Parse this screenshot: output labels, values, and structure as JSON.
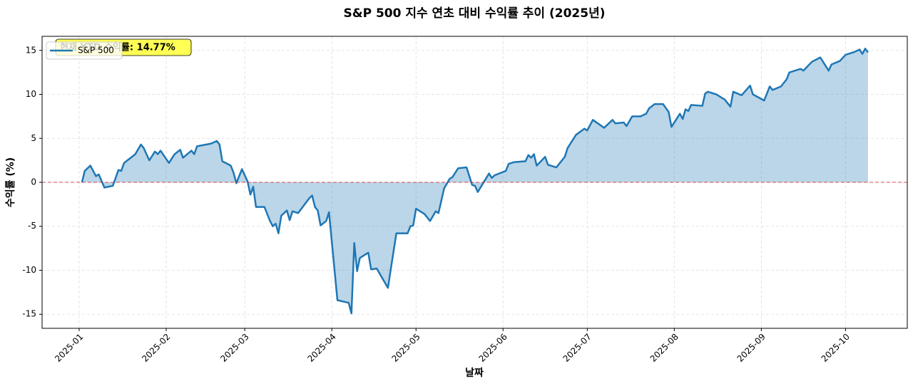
{
  "chart_data": {
    "type": "line",
    "title": "S&P 500 지수 연초 대비 수익률 추이 (2025년)",
    "xlabel": "날짜",
    "ylabel": "수익률 (%)",
    "annotation": "현재 YTD 수익률: 14.77%",
    "legend": "upper left",
    "grid": true,
    "fill": true,
    "hline": 0,
    "xlim": [
      -13.2,
      295
    ],
    "ylim": [
      -16.6,
      16.6
    ],
    "xticks": [
      {
        "value": 0,
        "label": "2025-01"
      },
      {
        "value": 31,
        "label": "2025-02"
      },
      {
        "value": 59,
        "label": "2025-03"
      },
      {
        "value": 90,
        "label": "2025-04"
      },
      {
        "value": 120,
        "label": "2025-05"
      },
      {
        "value": 151,
        "label": "2025-06"
      },
      {
        "value": 181,
        "label": "2025-07"
      },
      {
        "value": 212,
        "label": "2025-08"
      },
      {
        "value": 243,
        "label": "2025-09"
      },
      {
        "value": 273,
        "label": "2025-10"
      }
    ],
    "yticks": [
      -15,
      -10,
      -5,
      0,
      5,
      10,
      15
    ],
    "series": [
      {
        "name": "S&P 500",
        "color": "#1f77b4",
        "x": [
          1,
          2,
          4,
          6,
          7,
          9,
          12,
          14,
          15,
          16,
          20,
          22,
          23,
          25,
          27,
          28,
          29,
          32,
          34,
          36,
          37,
          40,
          41,
          42,
          47,
          49,
          50,
          51,
          54,
          55,
          56,
          58,
          60,
          61,
          62,
          63,
          66,
          68,
          69,
          70,
          71,
          72,
          74,
          75,
          76,
          78,
          82,
          83,
          84,
          85,
          86,
          88,
          89,
          92,
          96,
          97,
          98,
          99,
          100,
          103,
          104,
          106,
          110,
          111,
          113,
          117,
          118,
          119,
          120,
          123,
          125,
          127,
          128,
          130,
          132,
          133,
          135,
          138,
          140,
          141,
          142,
          146,
          147,
          148,
          152,
          153,
          155,
          159,
          160,
          161,
          162,
          163,
          166,
          167,
          170,
          173,
          174,
          177,
          180,
          181,
          183,
          187,
          190,
          191,
          194,
          195,
          197,
          200,
          202,
          203,
          205,
          208,
          210,
          211,
          214,
          215,
          216,
          217,
          218,
          222,
          223,
          224,
          227,
          230,
          232,
          233,
          236,
          239,
          240,
          244,
          246,
          247,
          250,
          252,
          253,
          257,
          258,
          261,
          264,
          267,
          268,
          271,
          273,
          276,
          278,
          279,
          280,
          281
        ],
        "values": [
          0,
          1.3,
          1.9,
          0.7,
          0.9,
          -0.6,
          -0.4,
          1.4,
          1.3,
          2.2,
          3.2,
          4.3,
          3.9,
          2.5,
          3.5,
          3.2,
          3.6,
          2.2,
          3.2,
          3.7,
          2.8,
          3.6,
          3.2,
          4.1,
          4.4,
          4.7,
          4.3,
          2.4,
          1.9,
          1.1,
          -0.1,
          1.5,
          0.1,
          -1.4,
          -0.5,
          -2.8,
          -2.8,
          -4.4,
          -5.0,
          -4.7,
          -5.8,
          -3.8,
          -3.2,
          -4.3,
          -3.3,
          -3.5,
          -1.8,
          -1.5,
          -2.8,
          -3.2,
          -4.9,
          -4.4,
          -3.4,
          -13.4,
          -13.7,
          -14.9,
          -6.9,
          -10.1,
          -8.6,
          -8.0,
          -9.9,
          -9.8,
          -12.0,
          -9.9,
          -5.8,
          -5.8,
          -5.0,
          -4.9,
          -3.0,
          -3.6,
          -4.4,
          -3.3,
          -3.5,
          -0.7,
          0.4,
          0.6,
          1.6,
          1.7,
          -0.3,
          -0.4,
          -1.1,
          1.0,
          0.5,
          0.8,
          1.3,
          2.1,
          2.3,
          2.4,
          3.1,
          2.8,
          3.2,
          1.9,
          2.9,
          2.0,
          1.7,
          2.9,
          3.9,
          5.4,
          6.1,
          5.9,
          7.1,
          6.2,
          7.1,
          6.7,
          6.8,
          6.4,
          7.5,
          7.5,
          7.8,
          8.4,
          8.9,
          8.9,
          8.0,
          6.3,
          7.8,
          7.2,
          8.3,
          8.1,
          8.8,
          8.7,
          10.1,
          10.3,
          10.0,
          9.4,
          8.6,
          10.3,
          9.9,
          11.0,
          10.0,
          9.3,
          10.9,
          10.5,
          10.9,
          11.7,
          12.5,
          12.9,
          12.7,
          13.7,
          14.2,
          12.7,
          13.4,
          13.8,
          14.5,
          14.8,
          15.1,
          14.6,
          15.2,
          14.77
        ]
      }
    ]
  }
}
